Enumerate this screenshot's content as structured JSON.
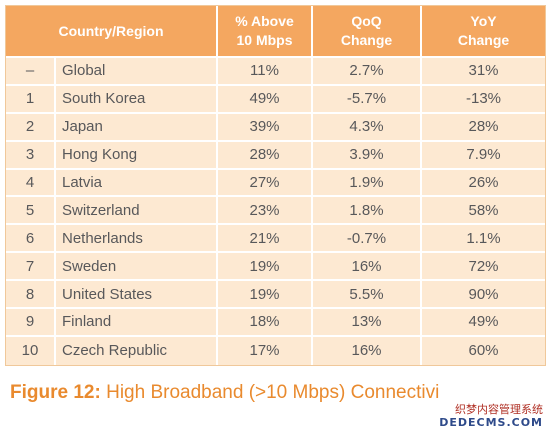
{
  "table": {
    "headers": {
      "country_region": "Country/Region",
      "pct_above_line1": "% Above",
      "pct_above_line2": "10 Mbps",
      "qoq_line1": "QoQ",
      "qoq_line2": "Change",
      "yoy_line1": "YoY",
      "yoy_line2": "Change"
    },
    "rows": [
      {
        "rank": "–",
        "country": "Global",
        "pct": "11%",
        "qoq": "2.7%",
        "yoy": "31%"
      },
      {
        "rank": "1",
        "country": "South Korea",
        "pct": "49%",
        "qoq": "-5.7%",
        "yoy": "-13%"
      },
      {
        "rank": "2",
        "country": "Japan",
        "pct": "39%",
        "qoq": "4.3%",
        "yoy": "28%"
      },
      {
        "rank": "3",
        "country": "Hong Kong",
        "pct": "28%",
        "qoq": "3.9%",
        "yoy": "7.9%"
      },
      {
        "rank": "4",
        "country": "Latvia",
        "pct": "27%",
        "qoq": "1.9%",
        "yoy": "26%"
      },
      {
        "rank": "5",
        "country": "Switzerland",
        "pct": "23%",
        "qoq": "1.8%",
        "yoy": "58%"
      },
      {
        "rank": "6",
        "country": "Netherlands",
        "pct": "21%",
        "qoq": "-0.7%",
        "yoy": "1.1%"
      },
      {
        "rank": "7",
        "country": "Sweden",
        "pct": "19%",
        "qoq": "16%",
        "yoy": "72%"
      },
      {
        "rank": "8",
        "country": "United States",
        "pct": "19%",
        "qoq": "5.5%",
        "yoy": "90%"
      },
      {
        "rank": "9",
        "country": "Finland",
        "pct": "18%",
        "qoq": "13%",
        "yoy": "49%"
      },
      {
        "rank": "10",
        "country": "Czech Republic",
        "pct": "17%",
        "qoq": "16%",
        "yoy": "60%"
      }
    ]
  },
  "caption": {
    "label": "Figure 12:",
    "text": "High Broadband (>10 Mbps) Connectivi"
  },
  "watermark": {
    "line1": "织梦内容管理系统",
    "line2": "DEDECMS.COM"
  },
  "colors": {
    "header_bg": "#f4a760",
    "row_bg": "#fde9d2",
    "caption": "#e98a2e",
    "text": "#58585a"
  }
}
